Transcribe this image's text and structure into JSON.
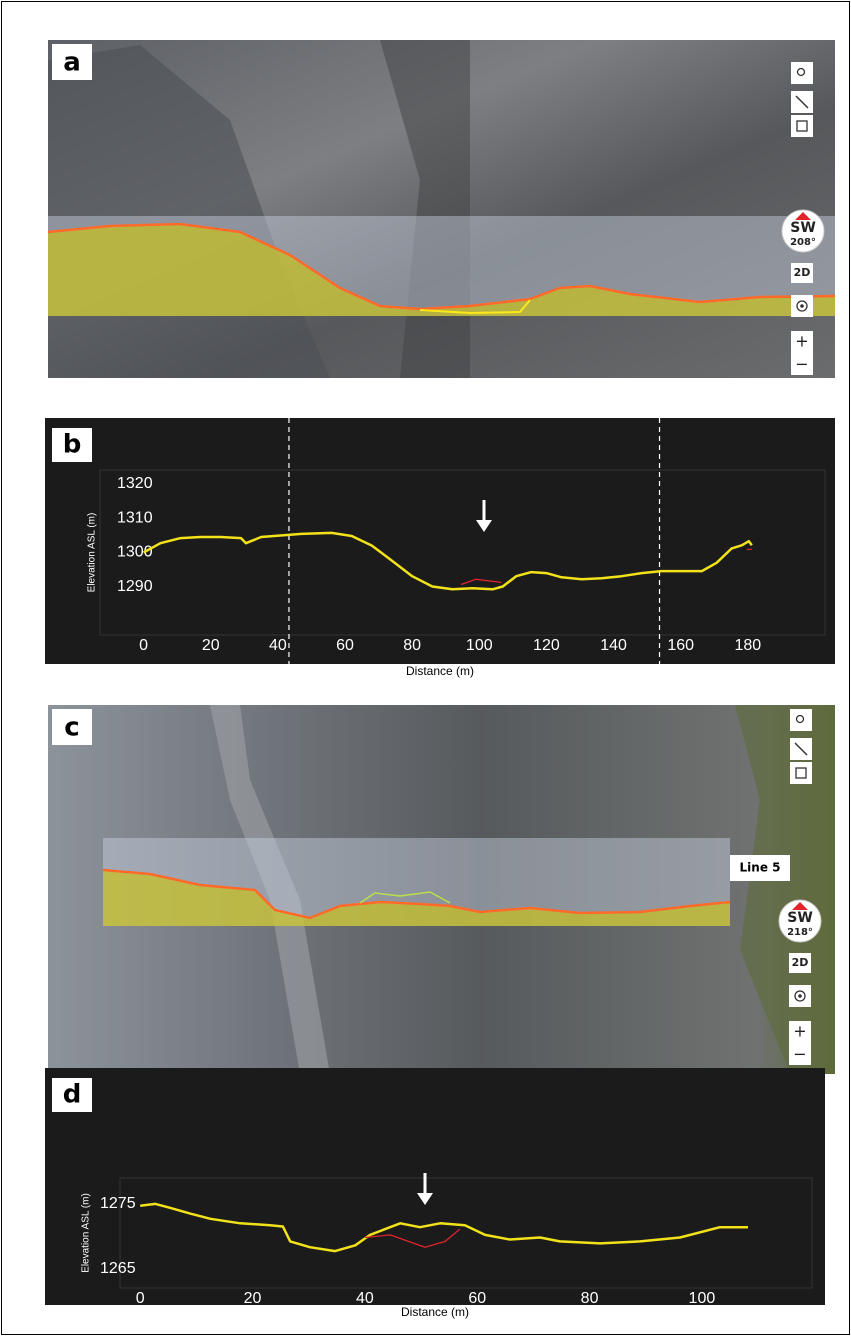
{
  "panels": {
    "a": {
      "label": "a",
      "compass": "SW",
      "bearing": "208°",
      "mode": "2D",
      "zoom_in": "+",
      "zoom_out": "−"
    },
    "c": {
      "label": "c",
      "compass": "SW",
      "bearing": "218°",
      "mode": "2D",
      "zoom_in": "+",
      "zoom_out": "−",
      "line_label": "Line 5"
    }
  },
  "chart_data": [
    {
      "type": "line",
      "panel_label": "b",
      "x_label": "Distance (m)",
      "y_label": "Elevation ASL (m)",
      "xlim": [
        -13,
        203
      ],
      "ylim": [
        1276,
        1324
      ],
      "xticks": [
        0,
        20,
        40,
        60,
        80,
        100,
        120,
        140,
        160,
        180
      ],
      "yticks": [
        1290,
        1300,
        1310,
        1320
      ],
      "vlines": [
        43.3,
        153.7
      ],
      "series": [
        {
          "color": "#f2e21a",
          "x": [
            0,
            5,
            11,
            17,
            23,
            29,
            30.5,
            35,
            47,
            56,
            62,
            68,
            74,
            80,
            86,
            92,
            98,
            104,
            107,
            111,
            115.5,
            120,
            124.5,
            130.5,
            136.4,
            142.4,
            148.4,
            154.3,
            160.3,
            166.3,
            170.7,
            175.2,
            178.2,
            180.3,
            181.2
          ],
          "values": [
            1300,
            1302.7,
            1304.2,
            1304.5,
            1304.5,
            1304.2,
            1302.7,
            1304.5,
            1305.4,
            1305.7,
            1304.8,
            1302,
            1297.6,
            1293.1,
            1290.1,
            1289.3,
            1289.6,
            1289.3,
            1290.1,
            1293.1,
            1294.3,
            1294,
            1292.8,
            1292.2,
            1292.5,
            1293.1,
            1294,
            1294.6,
            1294.6,
            1294.6,
            1297,
            1301.2,
            1302.1,
            1303.3,
            1302.1
          ]
        },
        {
          "color": "#e0242a",
          "x": [
            94.6,
            99,
            106.6
          ],
          "values": [
            1290.7,
            1292.2,
            1291.3
          ]
        },
        {
          "color": "#e0242a",
          "x": [
            179.7,
            181.2
          ],
          "values": [
            1300.9,
            1300.9
          ]
        }
      ]
    },
    {
      "type": "line",
      "panel_label": "d",
      "x_label": "Distance (m)",
      "y_label": "Elevation ASL (m)",
      "xlim": [
        -3.6,
        119.6
      ],
      "ylim": [
        1262,
        1279
      ],
      "xticks": [
        0,
        20,
        40,
        60,
        80,
        100
      ],
      "yticks": [
        1265,
        1275
      ],
      "series": [
        {
          "color": "#f2e21a",
          "x": [
            0,
            2.7,
            5.3,
            8.9,
            12.5,
            17.8,
            23.1,
            25.4,
            26.7,
            30.2,
            34.7,
            38.3,
            40.9,
            43.6,
            46.3,
            49.8,
            53.4,
            57.8,
            61.4,
            65.8,
            71.2,
            74.7,
            81.9,
            89,
            96.1,
            103.2,
            108.2
          ],
          "values": [
            1274.7,
            1275,
            1274.4,
            1273.5,
            1272.7,
            1272,
            1271.7,
            1271.5,
            1269.2,
            1268.3,
            1267.7,
            1268.6,
            1270.2,
            1271.1,
            1272,
            1271.4,
            1272,
            1271.7,
            1270.2,
            1269.5,
            1269.8,
            1269.2,
            1268.9,
            1269.2,
            1269.8,
            1271.4,
            1271.4
          ]
        },
        {
          "color": "#e0242a",
          "x": [
            40,
            44.5,
            50.7,
            54.3,
            56.9
          ],
          "values": [
            1269.8,
            1270.2,
            1268.3,
            1269.2,
            1271.1
          ]
        }
      ]
    }
  ]
}
